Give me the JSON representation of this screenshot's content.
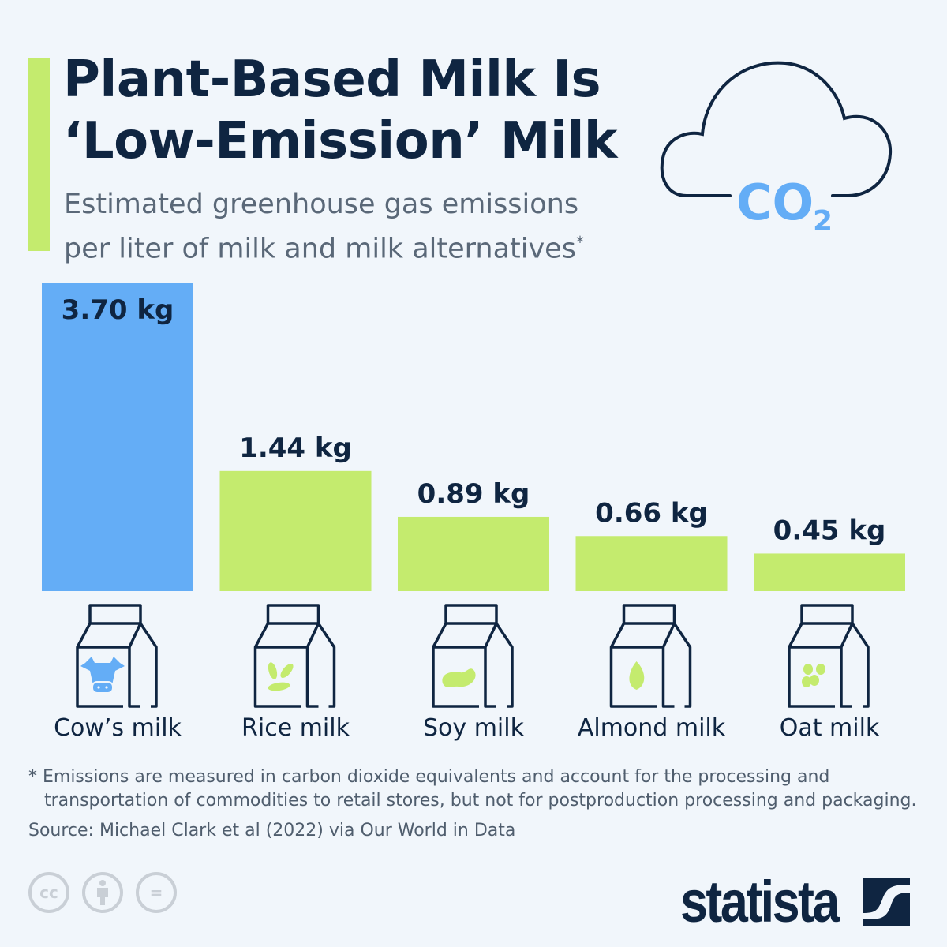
{
  "header": {
    "title_line1": "Plant-Based Milk Is",
    "title_line2": "‘Low-Emission’ Milk",
    "subtitle_line1": "Estimated greenhouse gas emissions",
    "subtitle_line2": "per liter of milk and milk alternatives",
    "subtitle_mark": "*",
    "cloud_text": "CO",
    "cloud_sub": "2"
  },
  "chart_data": {
    "type": "bar",
    "categories": [
      "Cow’s milk",
      "Rice milk",
      "Soy milk",
      "Almond milk",
      "Oat milk"
    ],
    "values": [
      3.7,
      1.44,
      0.89,
      0.66,
      0.45
    ],
    "value_labels": [
      "3.70 kg",
      "1.44 kg",
      "0.89 kg",
      "0.66 kg",
      "0.45 kg"
    ],
    "icons": [
      "cow-icon",
      "rice-icon",
      "soybean-icon",
      "almond-icon",
      "oat-icon"
    ],
    "colors": [
      "#64adf6",
      "#c4eb6e",
      "#c4eb6e",
      "#c4eb6e",
      "#c4eb6e"
    ],
    "ylim": [
      0,
      3.7
    ],
    "grid": false
  },
  "footer": {
    "footnote_line1": "* Emissions are measured in carbon dioxide equivalents and account for the processing and",
    "footnote_line2": "transportation of commodities to retail stores, but not for postproduction processing and packaging.",
    "source": "Source: Michael Clark et al (2022) via Our World in Data",
    "cc1": "cc",
    "cc3": "=",
    "logo": "statista"
  },
  "colors": {
    "navy": "#0f2541",
    "blue": "#64adf6",
    "green": "#c4eb6e",
    "background": "#f1f6fb"
  }
}
